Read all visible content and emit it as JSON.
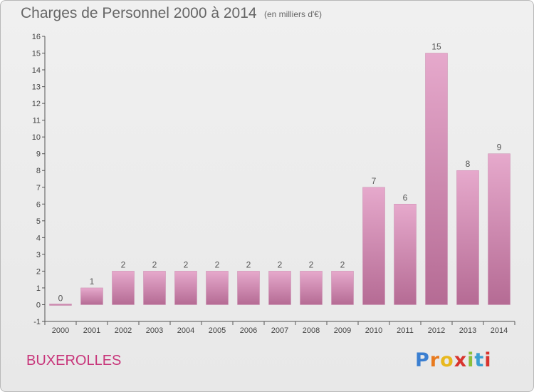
{
  "header": {
    "title": "Charges de Personnel 2000 à 2014",
    "subtitle": "(en milliers d'€)"
  },
  "footer": {
    "commune": "BUXEROLLES",
    "logo_letters": [
      "P",
      "r",
      "o",
      "x",
      "i",
      "t",
      "i"
    ],
    "logo_colors": [
      "#3b7fd1",
      "#e87a1e",
      "#e8b81e",
      "#d8342e",
      "#8cbf3a",
      "#3b9fd1",
      "#d8342e"
    ]
  },
  "chart_data": {
    "type": "bar",
    "title": "Charges de Personnel 2000 à 2014",
    "subtitle": "(en milliers d'€)",
    "categories": [
      "2000",
      "2001",
      "2002",
      "2003",
      "2004",
      "2005",
      "2006",
      "2007",
      "2008",
      "2009",
      "2010",
      "2011",
      "2012",
      "2013",
      "2014"
    ],
    "values": [
      0,
      1,
      2,
      2,
      2,
      2,
      2,
      2,
      2,
      2,
      7,
      6,
      15,
      8,
      9
    ],
    "value_labels": [
      "0",
      "1",
      "2",
      "2",
      "2",
      "2",
      "2",
      "2",
      "2",
      "2",
      "7",
      "6",
      "15",
      "8",
      "9"
    ],
    "ylim": [
      -1,
      16
    ],
    "yticks": [
      -1,
      0,
      1,
      2,
      3,
      4,
      5,
      6,
      7,
      8,
      9,
      10,
      11,
      12,
      13,
      14,
      15,
      16
    ],
    "grid": false,
    "bar_color": "#d98cb6",
    "bar_color_dark": "#b0678f"
  }
}
